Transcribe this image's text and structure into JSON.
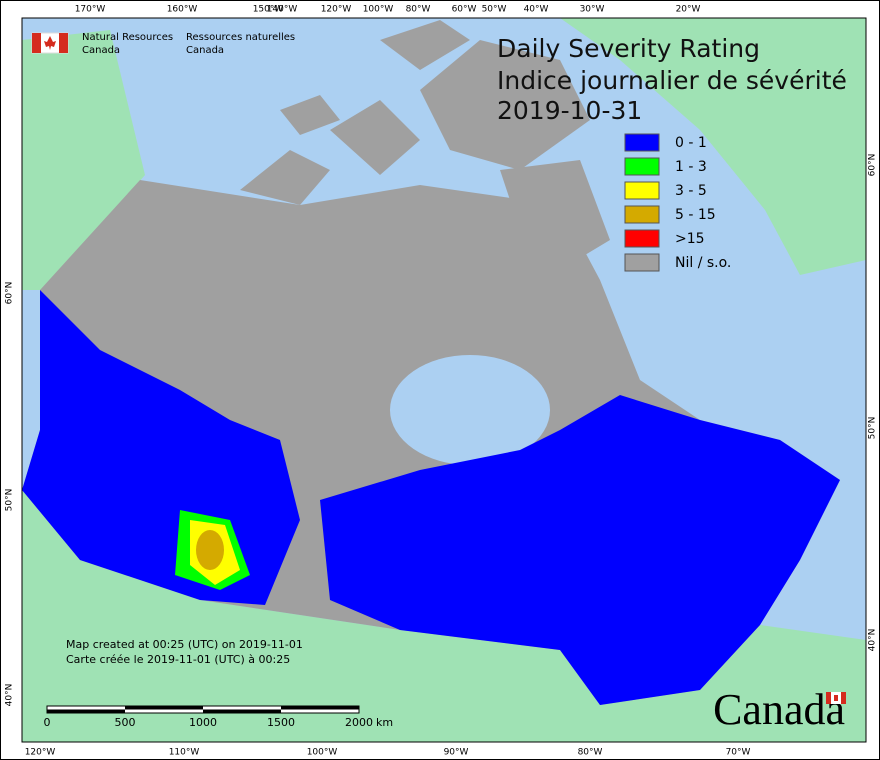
{
  "header": {
    "agency_en": [
      "Natural Resources",
      "Canada"
    ],
    "agency_fr": [
      "Ressources naturelles",
      "Canada"
    ]
  },
  "title": [
    "Daily Severity Rating",
    "Indice journalier de sévérité",
    "2019-10-31"
  ],
  "legend": [
    {
      "label": "0 - 1",
      "color": "#0000ff"
    },
    {
      "label": "1 - 3",
      "color": "#00ff00"
    },
    {
      "label": "3 - 5",
      "color": "#ffff00"
    },
    {
      "label": "5 - 15",
      "color": "#d4aa00"
    },
    {
      "label": ">15",
      "color": "#ff0000"
    },
    {
      "label": "Nil / s.o.",
      "color": "#a0a0a0"
    }
  ],
  "graticule": {
    "top": [
      "170°W",
      "160°W",
      "150°W",
      "140°W",
      "120°W",
      "100°W",
      "80°W",
      "60°W",
      "50°W",
      "40°W",
      "30°W",
      "20°W"
    ],
    "bottom": [
      "120°W",
      "110°W",
      "100°W",
      "90°W",
      "80°W",
      "70°W"
    ],
    "left": [
      "60°N",
      "50°N",
      "40°N"
    ],
    "right": [
      "60°N",
      "50°N",
      "40°N"
    ]
  },
  "notes": [
    "Map created at 00:25 (UTC) on 2019-11-01",
    "Carte créée le 2019-11-01 (UTC) à 00:25"
  ],
  "scale": {
    "labels": [
      "0",
      "500",
      "1000",
      "1500",
      "2000"
    ],
    "unit": "km"
  },
  "wordmark": "Canada"
}
